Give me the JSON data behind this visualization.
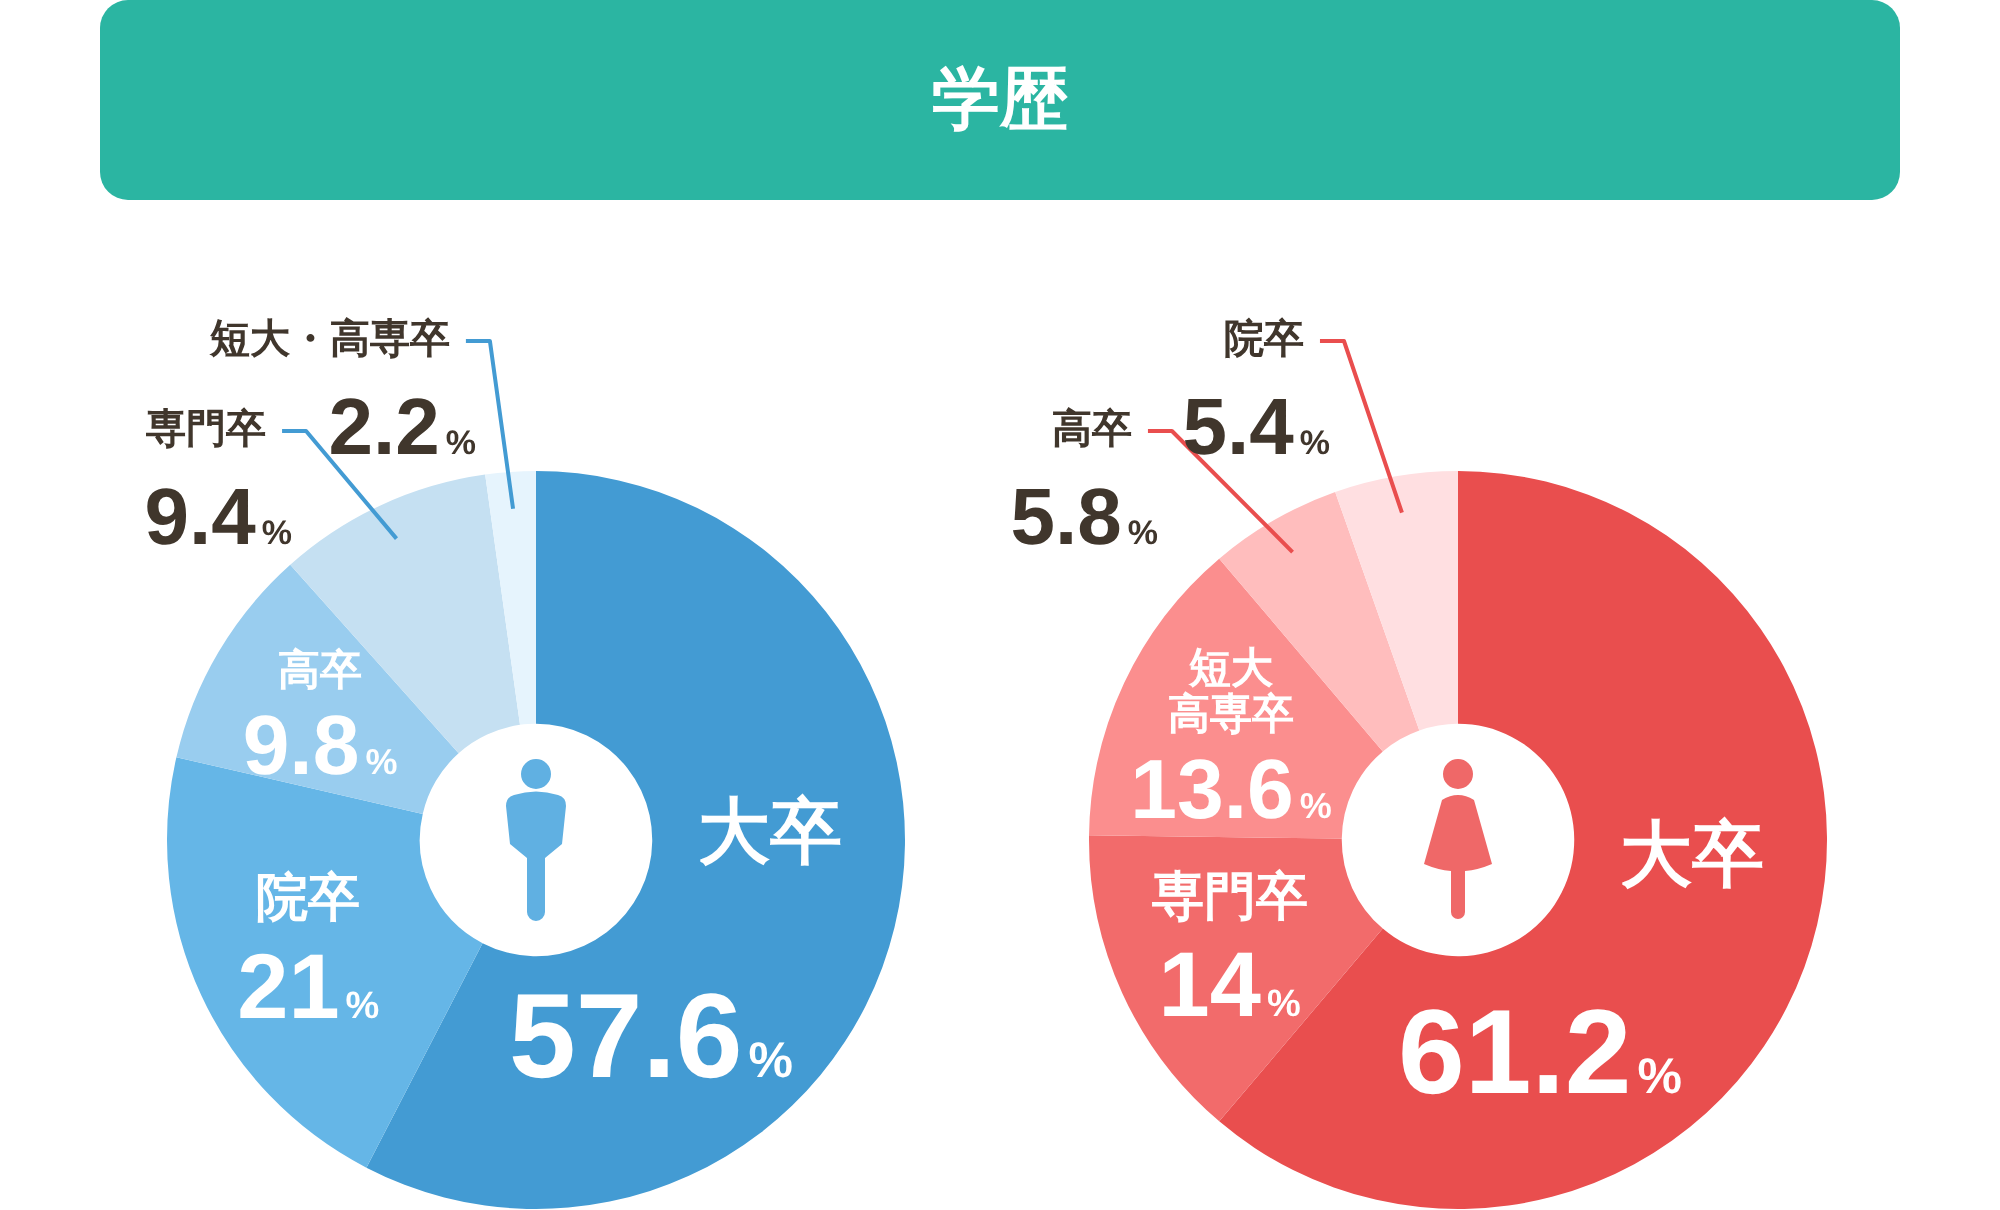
{
  "chart_data": [
    {
      "type": "donut",
      "title": "学歴",
      "categories": [
        "大卒",
        "院卒",
        "高卒",
        "専門卒",
        "短大・高専卒"
      ],
      "values": [
        57.6,
        21,
        9.8,
        9.4,
        2.2
      ],
      "colors": [
        "#439bd3",
        "#65b6e7",
        "#99cdef",
        "#c5e0f2",
        "#e6f4fd"
      ],
      "value_labels": [
        "57.6%",
        "21%",
        "9.8%",
        "9.4%",
        "2.2%"
      ]
    },
    {
      "type": "donut",
      "categories": [
        "大卒",
        "専門卒",
        "短大高専卒",
        "高卒",
        "院卒"
      ],
      "values": [
        61.2,
        14,
        13.6,
        5.8,
        5.4
      ],
      "colors": [
        "#e94e4e",
        "#f26b6b",
        "#fb8e8e",
        "#ffbdbd",
        "#ffdfe1"
      ],
      "value_labels": [
        "61.2%",
        "14%",
        "13.6%",
        "5.8%",
        "5.4%"
      ]
    }
  ]
}
